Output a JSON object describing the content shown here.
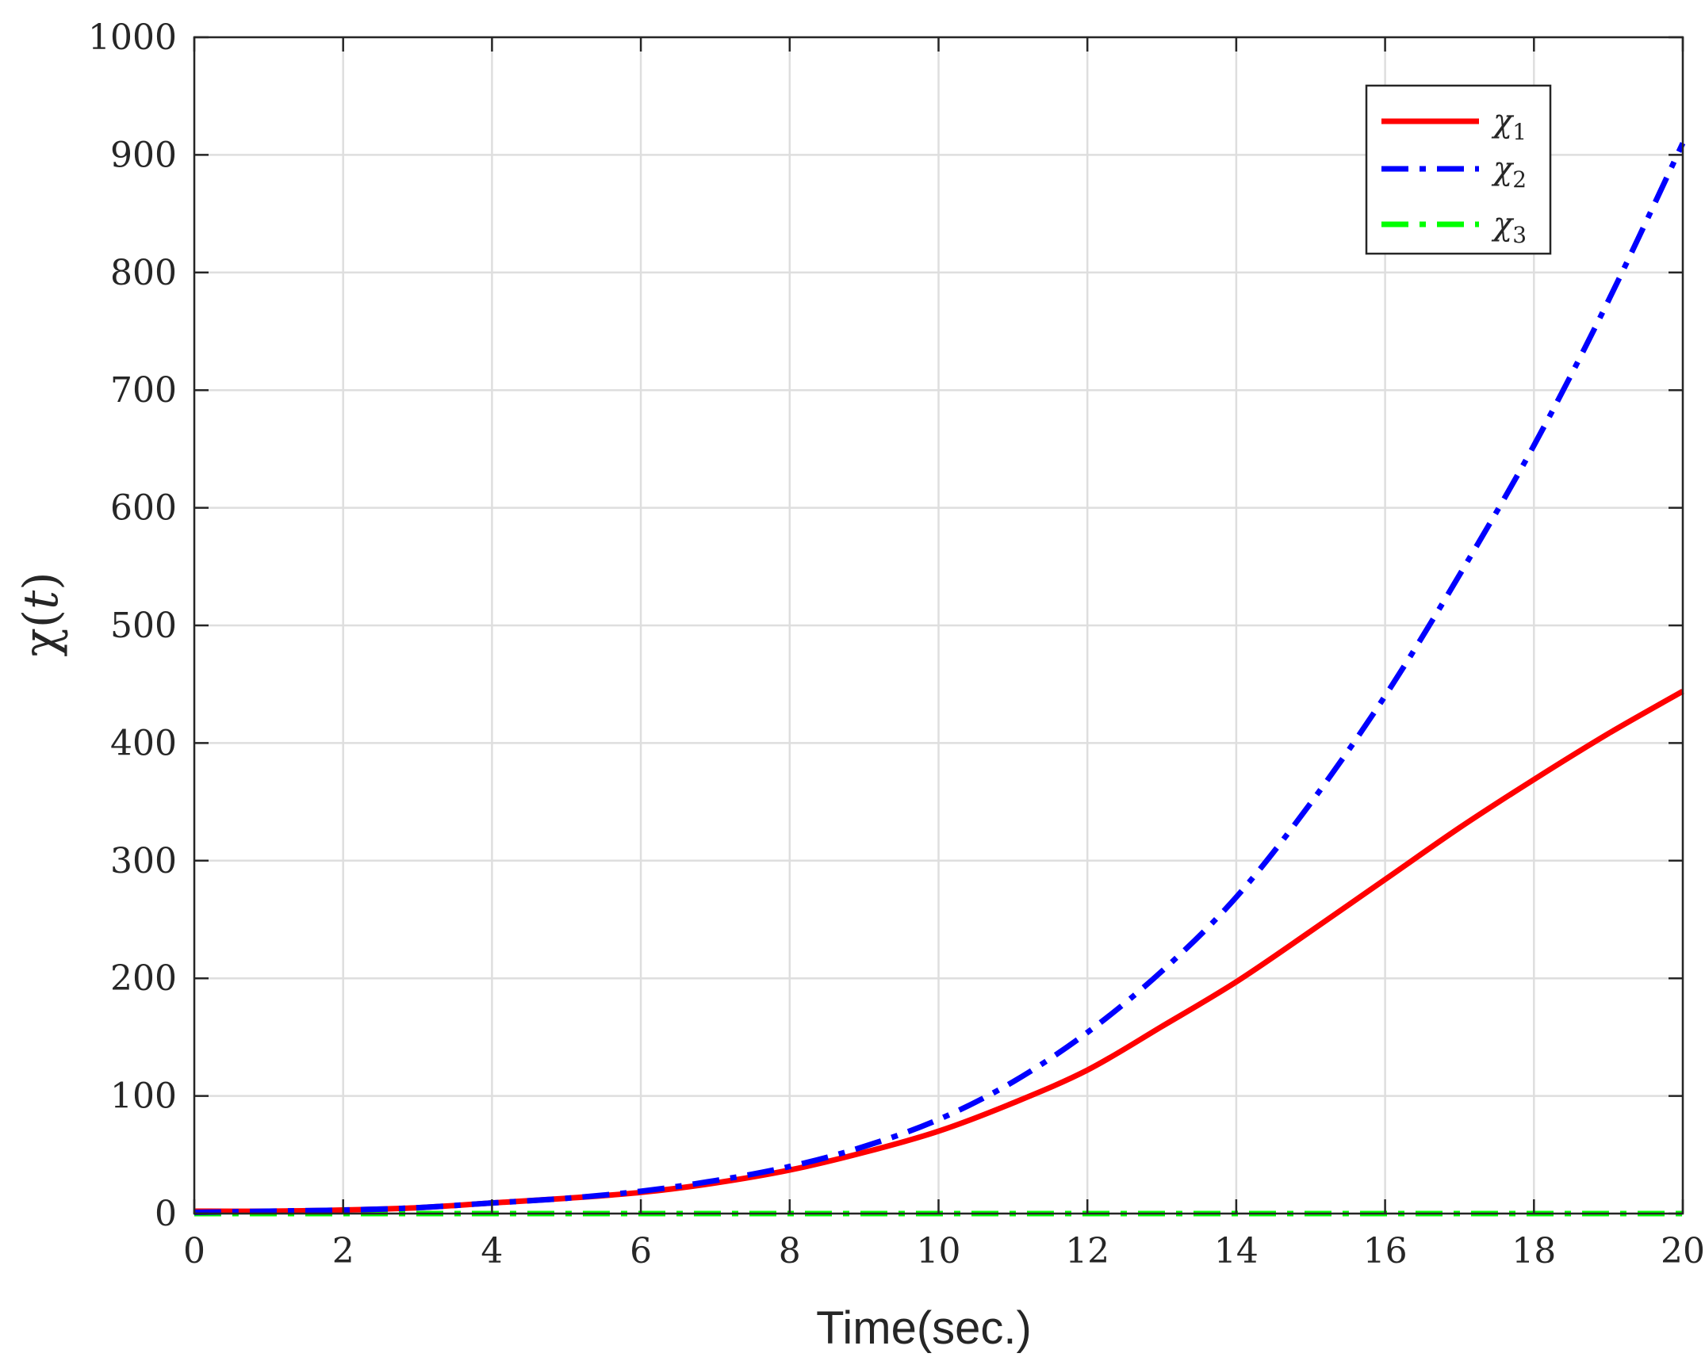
{
  "chart_data": {
    "type": "line",
    "xlabel": "Time(sec.)",
    "ylabel": {
      "main": "χ(",
      "var": "t",
      "close": ")"
    },
    "xlim": [
      0,
      20
    ],
    "ylim": [
      0,
      1000
    ],
    "xticks": [
      0,
      2,
      4,
      6,
      8,
      10,
      12,
      14,
      16,
      18,
      20
    ],
    "yticks": [
      0,
      100,
      200,
      300,
      400,
      500,
      600,
      700,
      800,
      900,
      1000
    ],
    "grid": true,
    "legend_position": "top-right",
    "x": [
      0,
      1,
      2,
      3,
      4,
      5,
      6,
      7,
      8,
      9,
      10,
      11,
      12,
      13,
      14,
      15,
      16,
      17,
      18,
      19,
      20
    ],
    "series": [
      {
        "name": "χ",
        "subscript": "1",
        "color": "#ff0000",
        "dash": "solid",
        "values": [
          2,
          2,
          3,
          5,
          9,
          13,
          18,
          26,
          37,
          52,
          70,
          94,
          122,
          159,
          197,
          240,
          284,
          328,
          369,
          408,
          444
        ]
      },
      {
        "name": "χ",
        "subscript": "2",
        "color": "#0000ff",
        "dash": "dashdot",
        "values": [
          1,
          2,
          3,
          5,
          9,
          13,
          19,
          28,
          40,
          57,
          80,
          112,
          154,
          206,
          269,
          349,
          440,
          543,
          653,
          776,
          910
        ]
      },
      {
        "name": "χ",
        "subscript": "3",
        "color": "#00ff00",
        "dash": "dashdot",
        "values": [
          0,
          0,
          0,
          0,
          0,
          0,
          0,
          0,
          0,
          0,
          0,
          0,
          0,
          0,
          0,
          0,
          0,
          0,
          0,
          0,
          0
        ]
      }
    ]
  }
}
